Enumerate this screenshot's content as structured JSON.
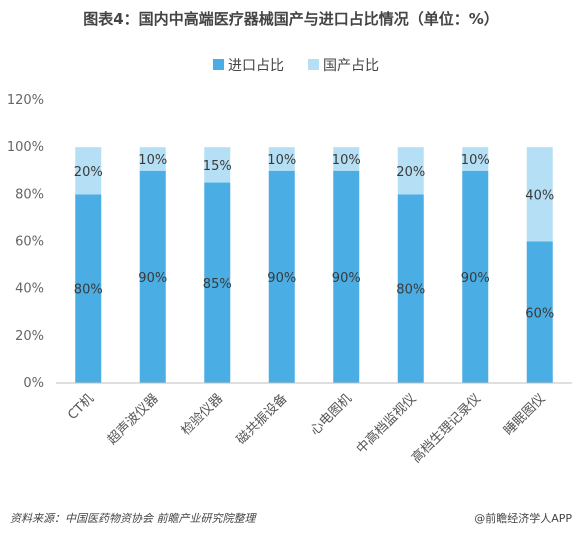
{
  "chart_data": {
    "type": "bar",
    "stacked": true,
    "title": "图表4：国内中高端医疗器械国产与进口占比情况（单位：%）",
    "categories": [
      "CT机",
      "超声波仪器",
      "检验仪器",
      "磁共振设备",
      "心电图机",
      "中高档监视仪",
      "高档生理记录仪",
      "睡眠图仪"
    ],
    "series": [
      {
        "name": "进口占比",
        "values": [
          80,
          90,
          85,
          90,
          90,
          80,
          90,
          60
        ],
        "labels": [
          "80%",
          "90%",
          "85%",
          "90%",
          "90%",
          "80%",
          "90%",
          "60%"
        ]
      },
      {
        "name": "国产占比",
        "values": [
          20,
          10,
          15,
          10,
          10,
          20,
          10,
          40
        ],
        "labels": [
          "20%",
          "10%",
          "15%",
          "10%",
          "10%",
          "20%",
          "10%",
          "40%"
        ]
      }
    ],
    "ylim": [
      0,
      120
    ],
    "yticks": [
      "0%",
      "20%",
      "40%",
      "60%",
      "80%",
      "100%",
      "120%"
    ],
    "legend_position": "top-center",
    "grid": false,
    "colors": {
      "import": "#4aaee4",
      "domestic": "#b5dff5"
    }
  },
  "footer": {
    "source": "资料来源：中国医药物资协会 前瞻产业研究院整理",
    "credit": "@前瞻经济学人APP"
  }
}
